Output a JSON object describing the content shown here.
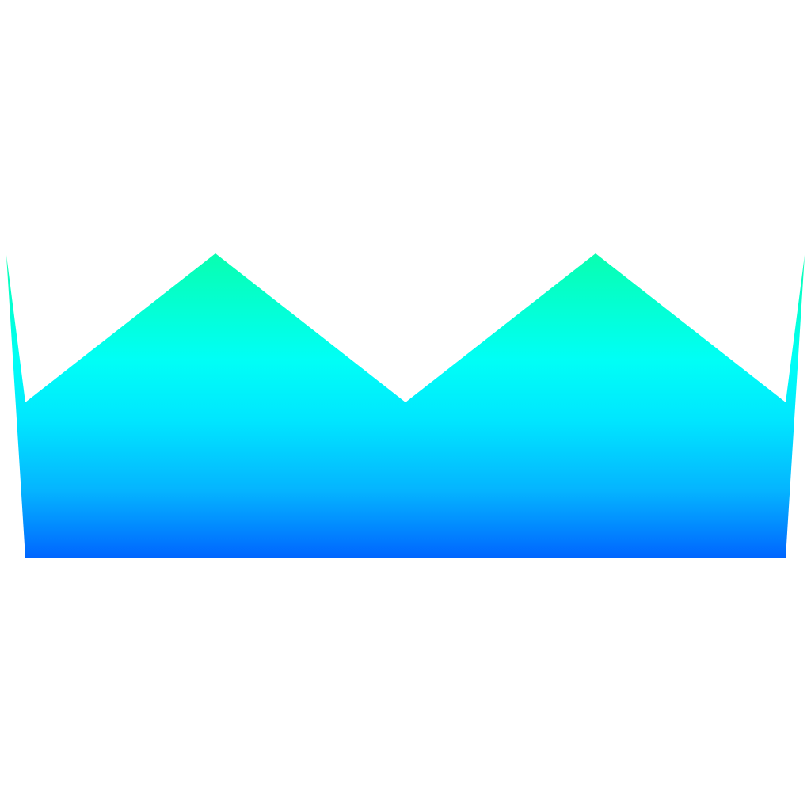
{
  "graphic": {
    "shape": "crown-silhouette",
    "gradient": {
      "direction": "vertical",
      "stops": [
        {
          "color": "#08ffb0",
          "position": 0.0
        },
        {
          "color": "#00fff6",
          "position": 0.35
        },
        {
          "color": "#00e6ff",
          "position": 0.55
        },
        {
          "color": "#05b4ff",
          "position": 0.78
        },
        {
          "color": "#0066ff",
          "position": 1.0
        }
      ]
    },
    "background": "#ffffff"
  }
}
